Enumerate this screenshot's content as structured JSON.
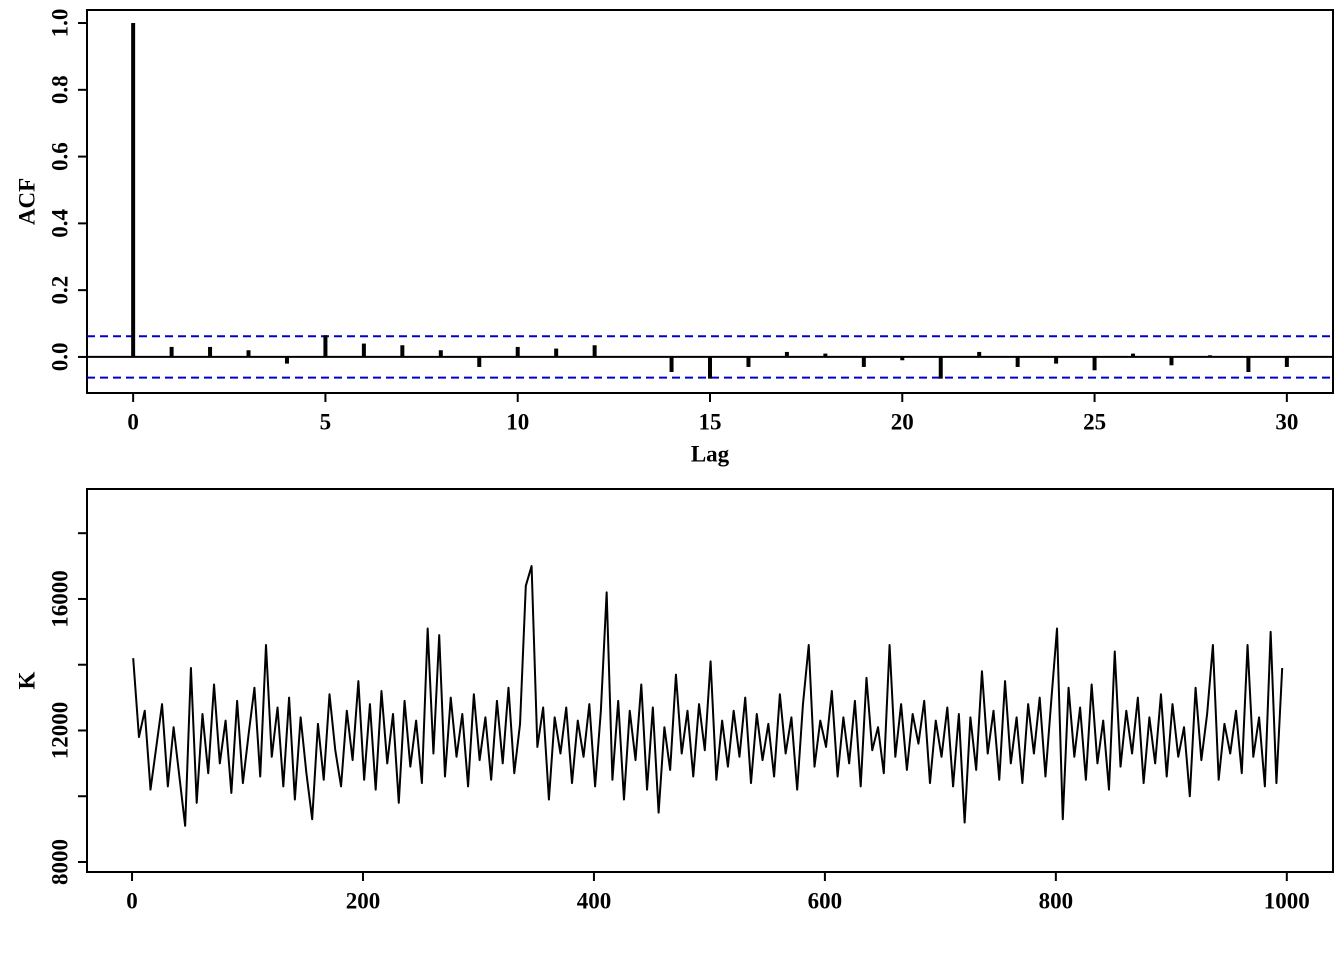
{
  "chart_data": [
    {
      "type": "bar",
      "xlabel": "Lag",
      "ylabel": "ACF",
      "x": [
        0,
        1,
        2,
        3,
        4,
        5,
        6,
        7,
        8,
        9,
        10,
        11,
        12,
        13,
        14,
        15,
        16,
        17,
        18,
        19,
        20,
        21,
        22,
        23,
        24,
        25,
        26,
        27,
        28,
        29,
        30
      ],
      "values": [
        1.0,
        0.03,
        0.03,
        0.02,
        -0.02,
        0.065,
        0.04,
        0.035,
        0.02,
        -0.03,
        0.03,
        0.025,
        0.035,
        0.002,
        -0.045,
        -0.065,
        -0.03,
        0.015,
        0.01,
        -0.03,
        -0.01,
        -0.065,
        0.015,
        -0.03,
        -0.02,
        -0.04,
        0.01,
        -0.025,
        0.005,
        -0.045,
        -0.03
      ],
      "color": "#000000",
      "zero_line": true,
      "ci": 0.062,
      "ci_color": "#0000cd",
      "xlim": [
        -1.2,
        31.2
      ],
      "ylim": [
        -0.108,
        1.039
      ],
      "xticks": [
        0,
        5,
        10,
        15,
        20,
        25,
        30
      ],
      "yticks": [
        {
          "value": 0,
          "label": "0.0"
        },
        0.2,
        0.4,
        0.6,
        0.8,
        {
          "value": 1,
          "label": "1.0"
        }
      ]
    },
    {
      "type": "line",
      "ylabel": "K",
      "color": "#000000",
      "x": [
        1,
        6,
        11,
        16,
        21,
        26,
        31,
        36,
        41,
        46,
        51,
        56,
        61,
        66,
        71,
        76,
        81,
        86,
        91,
        96,
        101,
        106,
        111,
        116,
        121,
        126,
        131,
        136,
        141,
        146,
        151,
        156,
        161,
        166,
        171,
        176,
        181,
        186,
        191,
        196,
        201,
        206,
        211,
        216,
        221,
        226,
        231,
        236,
        241,
        246,
        251,
        256,
        261,
        266,
        271,
        276,
        281,
        286,
        291,
        296,
        301,
        306,
        311,
        316,
        321,
        326,
        331,
        336,
        341,
        346,
        351,
        356,
        361,
        366,
        371,
        376,
        381,
        386,
        391,
        396,
        401,
        406,
        411,
        416,
        421,
        426,
        431,
        436,
        441,
        446,
        451,
        456,
        461,
        466,
        471,
        476,
        481,
        486,
        491,
        496,
        501,
        506,
        511,
        516,
        521,
        526,
        531,
        536,
        541,
        546,
        551,
        556,
        561,
        566,
        571,
        576,
        581,
        586,
        591,
        596,
        601,
        606,
        611,
        616,
        621,
        626,
        631,
        636,
        641,
        646,
        651,
        656,
        661,
        666,
        671,
        676,
        681,
        686,
        691,
        696,
        701,
        706,
        711,
        716,
        721,
        726,
        731,
        736,
        741,
        746,
        751,
        756,
        761,
        766,
        771,
        776,
        781,
        786,
        791,
        796,
        801,
        806,
        811,
        816,
        821,
        826,
        831,
        836,
        841,
        846,
        851,
        856,
        861,
        866,
        871,
        876,
        881,
        886,
        891,
        896,
        901,
        906,
        911,
        916,
        921,
        926,
        931,
        936,
        941,
        946,
        951,
        956,
        961,
        966,
        971,
        976,
        981,
        986,
        991,
        996
      ],
      "values": [
        14200,
        11800,
        12600,
        10200,
        11500,
        12800,
        10300,
        12100,
        10600,
        9100,
        13900,
        9800,
        12500,
        10700,
        13400,
        11000,
        12300,
        10100,
        12900,
        10400,
        11900,
        13300,
        10600,
        14600,
        11200,
        12700,
        10300,
        13000,
        9900,
        12400,
        10700,
        9300,
        12200,
        10500,
        13100,
        11400,
        10300,
        12600,
        11100,
        13500,
        10500,
        12800,
        10200,
        13200,
        11000,
        12500,
        9800,
        12900,
        10900,
        12300,
        10400,
        15100,
        11300,
        14900,
        10600,
        13000,
        11200,
        12500,
        10300,
        13100,
        11100,
        12400,
        10500,
        12900,
        11000,
        13300,
        10700,
        12200,
        16400,
        17000,
        11500,
        12700,
        9900,
        12400,
        11300,
        12700,
        10400,
        12300,
        11200,
        12800,
        10300,
        12600,
        16200,
        10500,
        12900,
        9900,
        12600,
        11100,
        13400,
        10200,
        12700,
        9500,
        12100,
        10800,
        13700,
        11300,
        12600,
        10600,
        12800,
        11400,
        14100,
        10500,
        12300,
        10900,
        12600,
        11200,
        13000,
        10400,
        12500,
        11100,
        12200,
        10600,
        13100,
        11300,
        12400,
        10200,
        12800,
        14600,
        10900,
        12300,
        11500,
        13200,
        10600,
        12400,
        11000,
        12900,
        10300,
        13600,
        11400,
        12100,
        10700,
        14600,
        11200,
        12800,
        10800,
        12500,
        11600,
        12900,
        10400,
        12300,
        11200,
        12700,
        10300,
        12500,
        9200,
        12400,
        10800,
        13800,
        11300,
        12600,
        10500,
        13500,
        11000,
        12400,
        10400,
        12800,
        11300,
        13000,
        10600,
        12900,
        15100,
        9300,
        13300,
        11200,
        12700,
        10500,
        13400,
        11000,
        12300,
        10200,
        14400,
        10900,
        12600,
        11300,
        13000,
        10400,
        12400,
        11000,
        13100,
        10600,
        12800,
        11200,
        12100,
        10000,
        13300,
        11100,
        12500,
        14600,
        10500,
        12200,
        11300,
        12600,
        10700,
        14600,
        11200,
        12400,
        10300,
        15000,
        10400,
        13900
      ],
      "xlim": [
        -39,
        1040
      ],
      "ylim": [
        7696,
        19344
      ],
      "xticks": [
        0,
        200,
        400,
        600,
        800,
        1000
      ],
      "yticks": [
        8000,
        12000,
        16000
      ],
      "yminor_ticks": [
        10000,
        14000,
        18000
      ]
    }
  ]
}
